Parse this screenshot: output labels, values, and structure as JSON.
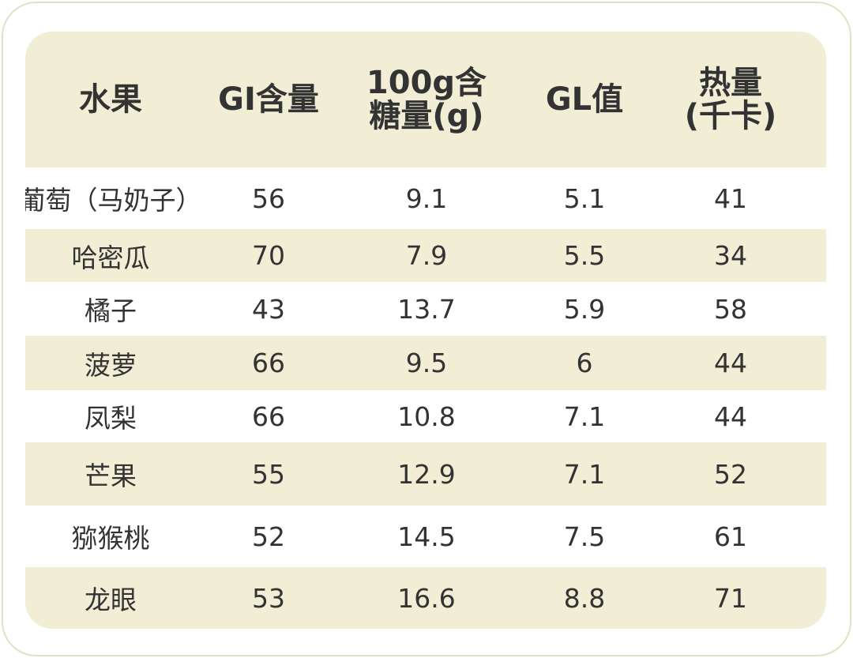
{
  "table": {
    "header": [
      [
        "水果"
      ],
      [
        "GI含量"
      ],
      [
        "100g含",
        "糖量(g)"
      ],
      [
        "GL值"
      ],
      [
        "热量",
        "(千卡)"
      ]
    ],
    "rows": [
      [
        "葡萄（马奶子）",
        56,
        9.1,
        5.1,
        41
      ],
      [
        "哈密瓜",
        70,
        7.9,
        5.5,
        34
      ],
      [
        "橘子",
        43,
        13.7,
        5.9,
        58
      ],
      [
        "菠萝",
        66,
        9.5,
        6,
        44
      ],
      [
        "凤梨",
        66,
        10.8,
        7.1,
        44
      ],
      [
        "芒果",
        55,
        12.9,
        7.1,
        52
      ],
      [
        "猕猴桃",
        52,
        14.5,
        7.5,
        61
      ],
      [
        "龙眼",
        53,
        16.6,
        8.8,
        71
      ]
    ]
  }
}
